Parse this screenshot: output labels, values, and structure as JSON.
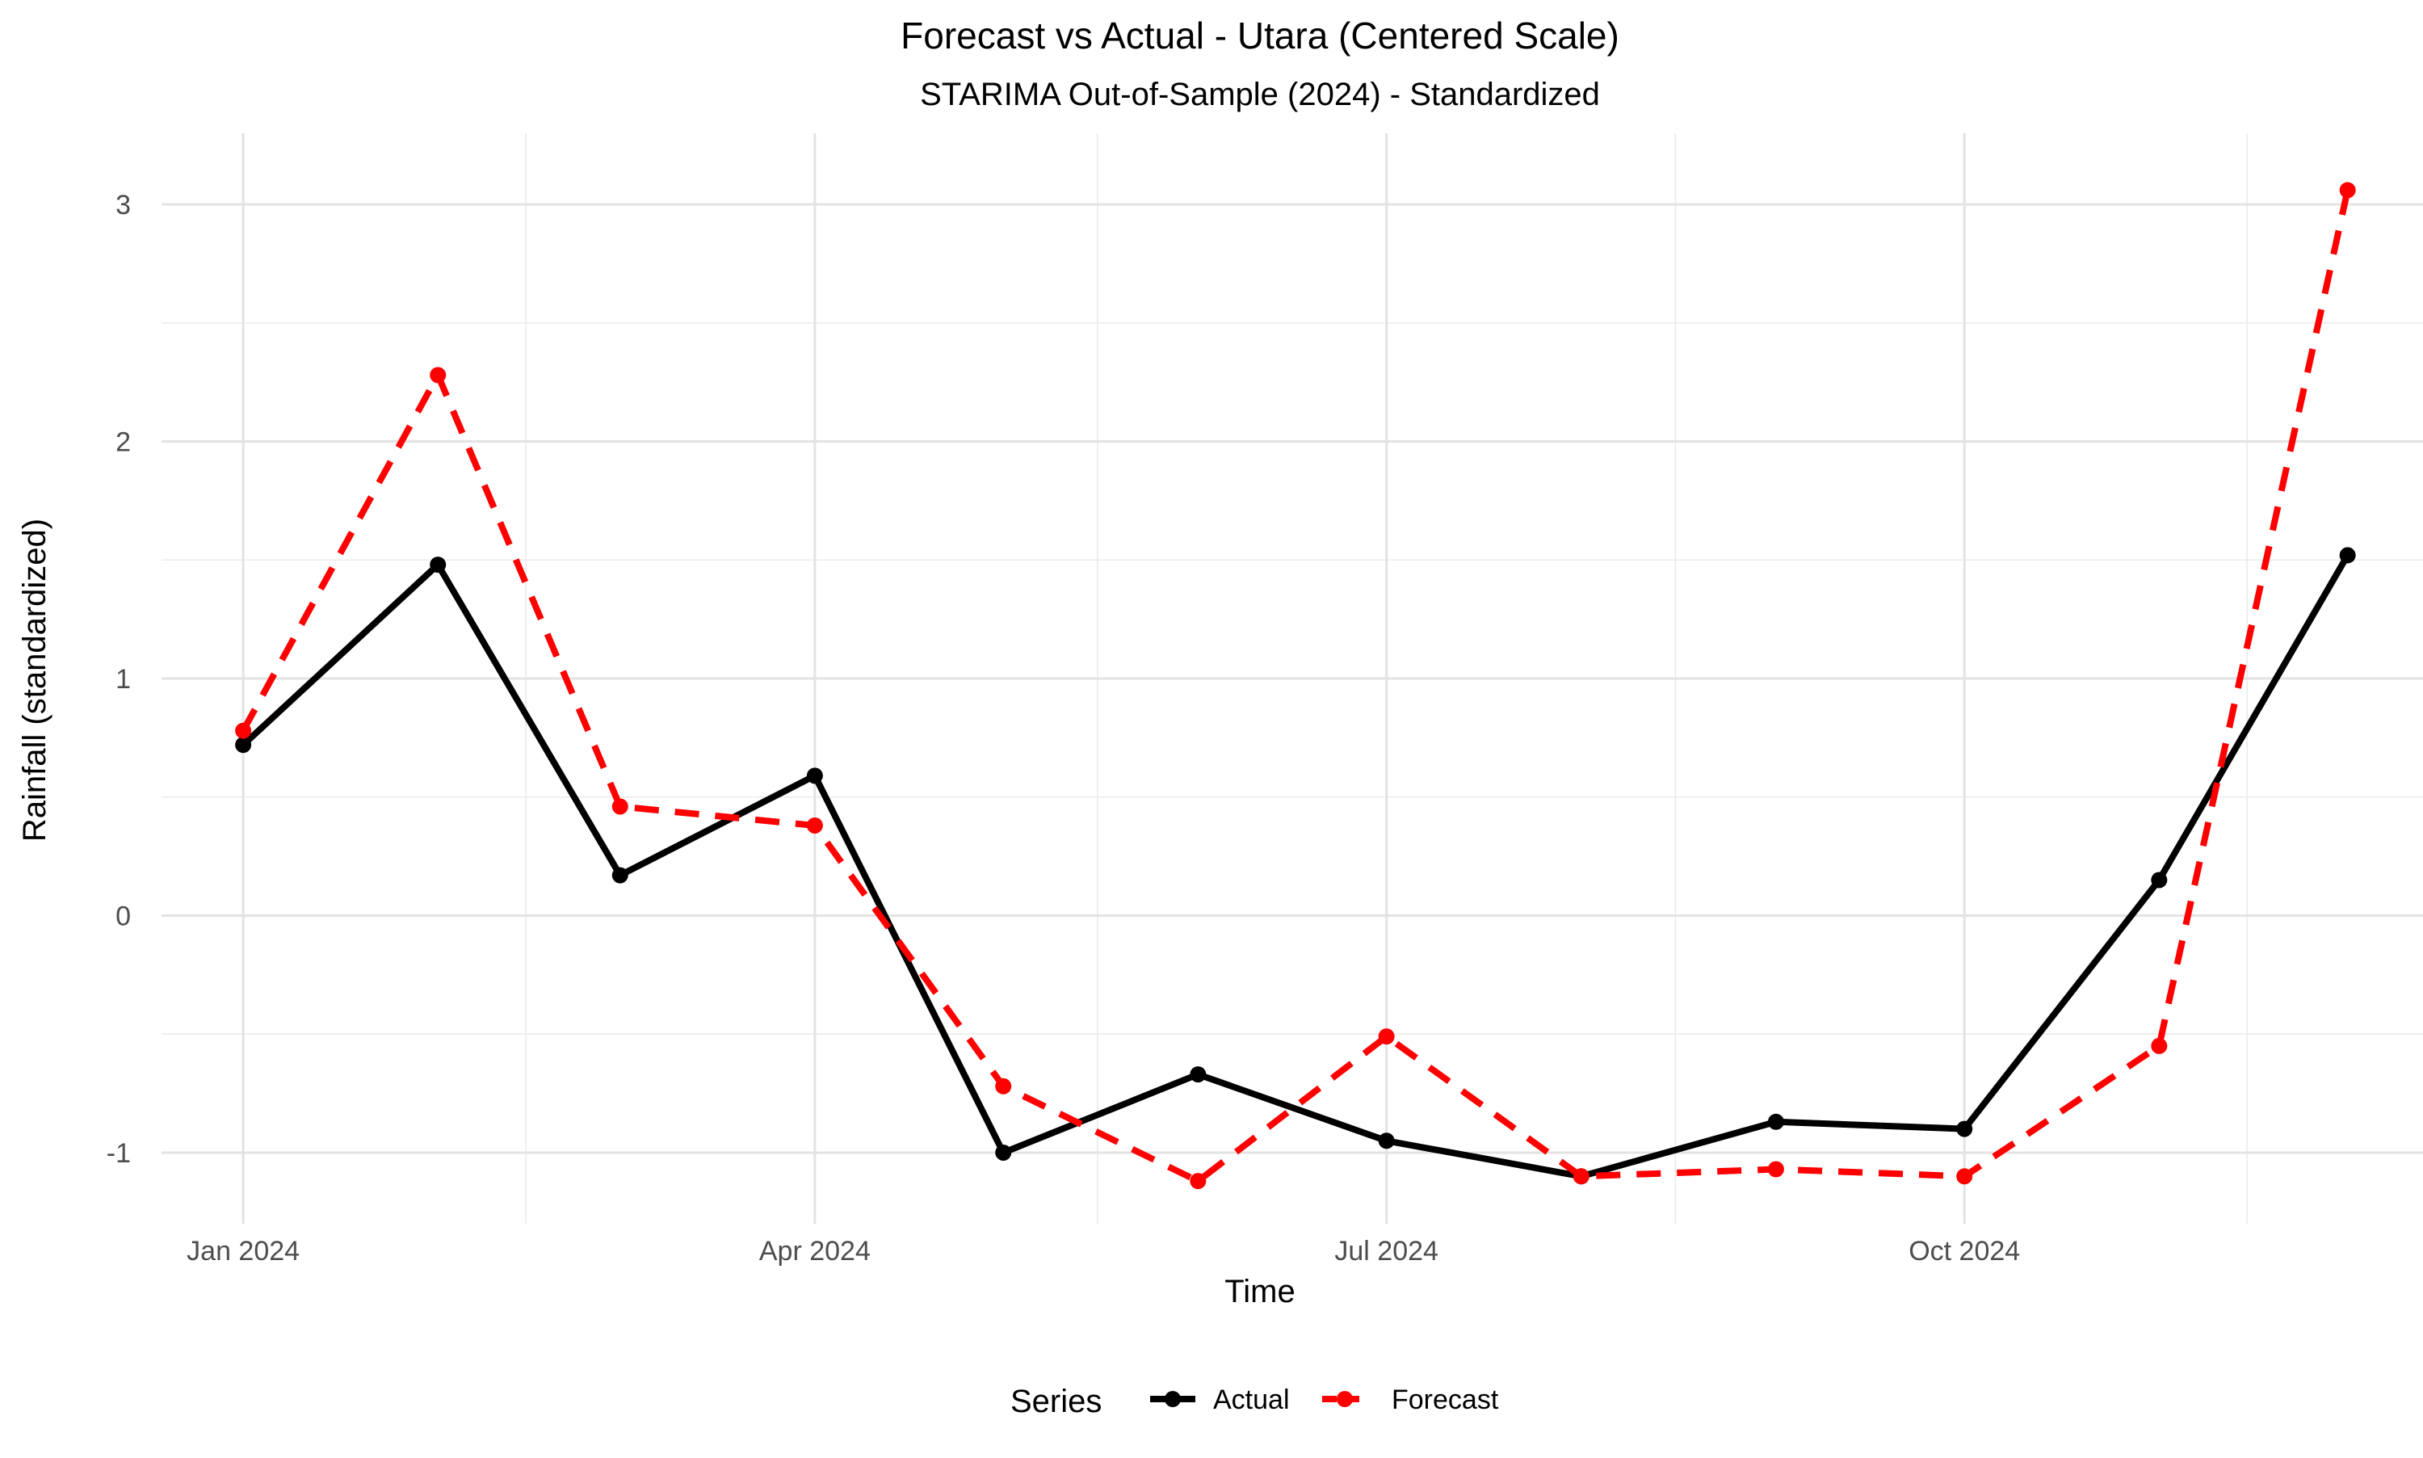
{
  "chart_data": {
    "type": "line",
    "title": "Forecast vs Actual - Utara (Centered Scale)",
    "subtitle": "STARIMA Out-of-Sample (2024) - Standardized",
    "xlabel": "Time",
    "ylabel": "Rainfall (standardized)",
    "x": [
      "2024-01-01",
      "2024-02-01",
      "2024-03-01",
      "2024-04-01",
      "2024-05-01",
      "2024-06-01",
      "2024-07-01",
      "2024-08-01",
      "2024-09-01",
      "2024-10-01",
      "2024-11-01",
      "2024-12-01"
    ],
    "xlim": [
      "2023-12-19",
      "2024-12-13"
    ],
    "x_ticks": [
      {
        "date": "2024-01-01",
        "label": "Jan 2024"
      },
      {
        "date": "2024-04-01",
        "label": "Apr 2024"
      },
      {
        "date": "2024-07-01",
        "label": "Jul 2024"
      },
      {
        "date": "2024-10-01",
        "label": "Oct 2024"
      }
    ],
    "x_minor_ticks": [
      "2024-02-15",
      "2024-05-16",
      "2024-08-16",
      "2024-11-15"
    ],
    "ylim": [
      -1.3,
      3.3
    ],
    "y_ticks": [
      {
        "value": -1,
        "label": "-1"
      },
      {
        "value": 0,
        "label": "0"
      },
      {
        "value": 1,
        "label": "1"
      },
      {
        "value": 2,
        "label": "2"
      },
      {
        "value": 3,
        "label": "3"
      }
    ],
    "y_minor_ticks": [
      -0.5,
      0.5,
      1.5,
      2.5
    ],
    "grid": true,
    "legend": {
      "title": "Series",
      "position": "bottom"
    },
    "series": [
      {
        "name": "Actual",
        "color": "#000000",
        "linestyle": "solid",
        "values": [
          0.72,
          1.48,
          0.17,
          0.59,
          -1.0,
          -0.67,
          -0.95,
          -1.1,
          -0.87,
          -0.9,
          0.15,
          1.52
        ]
      },
      {
        "name": "Forecast",
        "color": "#ff0000",
        "linestyle": "dashed",
        "values": [
          0.78,
          2.28,
          0.46,
          0.38,
          -0.72,
          -1.12,
          -0.51,
          -1.1,
          -1.07,
          -1.1,
          -0.55,
          3.06
        ]
      }
    ]
  }
}
